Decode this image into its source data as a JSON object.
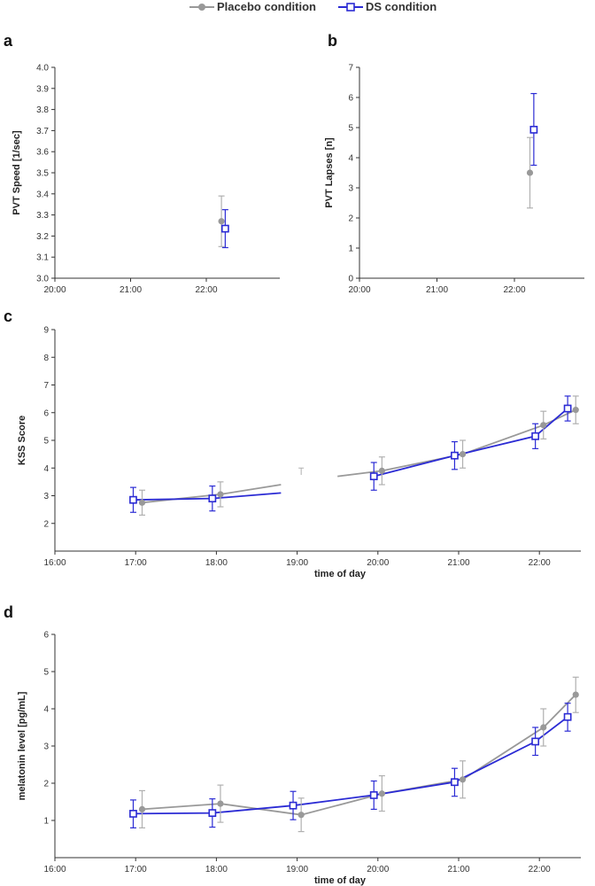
{
  "legend": [
    {
      "label": "Placebo condition",
      "color": "#999999",
      "marker": "circle"
    },
    {
      "label": "DS condition",
      "color": "#2b2bd4",
      "marker": "square"
    }
  ],
  "chart_data": [
    {
      "panel": "a",
      "type": "line",
      "xlabel": "",
      "ylabel": "PVT Speed [1/sec]",
      "xlim": [
        20.0,
        22.9
      ],
      "ylim": [
        3.0,
        4.0
      ],
      "x_ticks": [
        "20:00",
        "21:00",
        "22:00"
      ],
      "y_ticks": [
        "3.0",
        "3.1",
        "3.2",
        "3.3",
        "3.4",
        "3.5",
        "3.6",
        "3.7",
        "3.8",
        "3.9",
        "4.0"
      ],
      "series": [
        {
          "name": "Placebo condition",
          "points": [
            {
              "x": 22.2,
              "y": 3.27,
              "lo": 3.15,
              "hi": 3.39
            }
          ]
        },
        {
          "name": "DS condition",
          "points": [
            {
              "x": 22.25,
              "y": 3.235,
              "lo": 3.145,
              "hi": 3.325
            }
          ]
        }
      ]
    },
    {
      "panel": "b",
      "type": "line",
      "xlabel": "",
      "ylabel": "PVT Lapses [n]",
      "xlim": [
        20.0,
        22.9
      ],
      "ylim": [
        0,
        7
      ],
      "x_ticks": [
        "20:00",
        "21:00",
        "22:00"
      ],
      "y_ticks": [
        "0",
        "1",
        "2",
        "3",
        "4",
        "5",
        "6",
        "7"
      ],
      "series": [
        {
          "name": "Placebo condition",
          "points": [
            {
              "x": 22.2,
              "y": 3.5,
              "lo": 2.33,
              "hi": 4.67
            }
          ]
        },
        {
          "name": "DS condition",
          "points": [
            {
              "x": 22.25,
              "y": 4.93,
              "lo": 3.75,
              "hi": 6.13
            }
          ]
        }
      ]
    },
    {
      "panel": "c",
      "type": "line",
      "xlabel": "time of day",
      "ylabel": "KSS Score",
      "xlim": [
        16.0,
        22.5
      ],
      "ylim": [
        1,
        9
      ],
      "x_ticks": [
        "16:00",
        "17:00",
        "18:00",
        "19:00",
        "20:00",
        "21:00",
        "22:00"
      ],
      "y_ticks": [
        "2",
        "3",
        "4",
        "5",
        "6",
        "7",
        "8",
        "9"
      ],
      "series": [
        {
          "name": "Placebo condition",
          "points": [
            {
              "x": 17.08,
              "y": 2.75,
              "lo": 2.3,
              "hi": 3.2
            },
            {
              "x": 18.05,
              "y": 3.05,
              "lo": 2.6,
              "hi": 3.5
            },
            {
              "x": 20.05,
              "y": 3.9,
              "lo": 3.4,
              "hi": 4.4
            },
            {
              "x": 21.05,
              "y": 4.5,
              "lo": 4.0,
              "hi": 5.0
            },
            {
              "x": 22.05,
              "y": 5.55,
              "lo": 5.05,
              "hi": 6.05
            },
            {
              "x": 22.45,
              "y": 6.1,
              "lo": 5.6,
              "hi": 6.6
            }
          ]
        },
        {
          "name": "DS condition",
          "points": [
            {
              "x": 16.97,
              "y": 2.85,
              "lo": 2.4,
              "hi": 3.3
            },
            {
              "x": 17.95,
              "y": 2.9,
              "lo": 2.45,
              "hi": 3.35
            },
            {
              "x": 19.95,
              "y": 3.7,
              "lo": 3.2,
              "hi": 4.2
            },
            {
              "x": 20.95,
              "y": 4.45,
              "lo": 3.95,
              "hi": 4.95
            },
            {
              "x": 21.95,
              "y": 5.15,
              "lo": 4.7,
              "hi": 5.6
            },
            {
              "x": 22.35,
              "y": 6.15,
              "lo": 5.7,
              "hi": 6.6
            }
          ]
        }
      ],
      "gap_segments": [
        {
          "name": "Placebo condition",
          "from": {
            "x": 18.05,
            "y": 3.05
          },
          "to": {
            "x": 18.8,
            "y": 3.4
          }
        },
        {
          "name": "Placebo condition",
          "from": {
            "x": 19.5,
            "y": 3.7
          },
          "to": {
            "x": 20.05,
            "y": 3.9
          }
        },
        {
          "name": "DS condition",
          "from": {
            "x": 17.95,
            "y": 2.9
          },
          "to": {
            "x": 18.8,
            "y": 3.1
          }
        }
      ],
      "stray_errorbar": {
        "x": 19.05,
        "lo": 3.75,
        "hi": 4.0
      }
    },
    {
      "panel": "d",
      "type": "line",
      "xlabel": "time of day",
      "ylabel": "melatonin level [pg/mL]",
      "xlim": [
        16.0,
        22.5
      ],
      "ylim": [
        0,
        6
      ],
      "x_ticks": [
        "16:00",
        "17:00",
        "18:00",
        "19:00",
        "20:00",
        "21:00",
        "22:00"
      ],
      "y_ticks": [
        "1",
        "2",
        "3",
        "4",
        "5",
        "6"
      ],
      "series": [
        {
          "name": "Placebo condition",
          "points": [
            {
              "x": 17.08,
              "y": 1.3,
              "lo": 0.8,
              "hi": 1.8
            },
            {
              "x": 18.05,
              "y": 1.45,
              "lo": 0.95,
              "hi": 1.95
            },
            {
              "x": 19.05,
              "y": 1.15,
              "lo": 0.7,
              "hi": 1.6
            },
            {
              "x": 20.05,
              "y": 1.72,
              "lo": 1.25,
              "hi": 2.2
            },
            {
              "x": 21.05,
              "y": 2.1,
              "lo": 1.6,
              "hi": 2.6
            },
            {
              "x": 22.05,
              "y": 3.5,
              "lo": 3.0,
              "hi": 4.0
            },
            {
              "x": 22.45,
              "y": 4.38,
              "lo": 3.9,
              "hi": 4.85
            }
          ]
        },
        {
          "name": "DS condition",
          "points": [
            {
              "x": 16.97,
              "y": 1.18,
              "lo": 0.8,
              "hi": 1.55
            },
            {
              "x": 17.95,
              "y": 1.2,
              "lo": 0.82,
              "hi": 1.58
            },
            {
              "x": 18.95,
              "y": 1.4,
              "lo": 1.02,
              "hi": 1.78
            },
            {
              "x": 19.95,
              "y": 1.68,
              "lo": 1.3,
              "hi": 2.06
            },
            {
              "x": 20.95,
              "y": 2.03,
              "lo": 1.65,
              "hi": 2.4
            },
            {
              "x": 21.95,
              "y": 3.12,
              "lo": 2.75,
              "hi": 3.5
            },
            {
              "x": 22.35,
              "y": 3.78,
              "lo": 3.4,
              "hi": 4.15
            }
          ]
        }
      ]
    }
  ]
}
